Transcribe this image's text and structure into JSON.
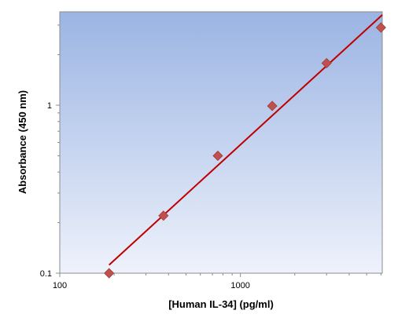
{
  "chart_data": {
    "type": "scatter",
    "title": "",
    "xlabel": "[Human IL-34] (pg/ml)",
    "ylabel": "Absorbance (450 nm)",
    "x_scale": "log",
    "y_scale": "log",
    "xlim": [
      100,
      6100
    ],
    "ylim": [
      0.1,
      3.6
    ],
    "x_ticks": [
      {
        "value": 100,
        "label": "100"
      },
      {
        "value": 1000,
        "label": "1000"
      }
    ],
    "y_ticks": [
      {
        "value": 0.1,
        "label": "0.1"
      },
      {
        "value": 1,
        "label": "1"
      }
    ],
    "grid": false,
    "series": [
      {
        "points": [
          {
            "x": 187.5,
            "y": 0.1
          },
          {
            "x": 375,
            "y": 0.22
          },
          {
            "x": 750,
            "y": 0.5
          },
          {
            "x": 1500,
            "y": 0.99
          },
          {
            "x": 3000,
            "y": 1.78
          },
          {
            "x": 6000,
            "y": 2.9
          }
        ]
      }
    ],
    "fit_line": {
      "x_start": 187.5,
      "y_start": 0.112,
      "x_end": 6100,
      "y_end": 3.45
    },
    "colors": {
      "marker": "#c0504d",
      "fit_line": "#c00000",
      "plot_bg_top": "#9bb4e3",
      "plot_bg_bottom": "#eef2fb"
    }
  }
}
